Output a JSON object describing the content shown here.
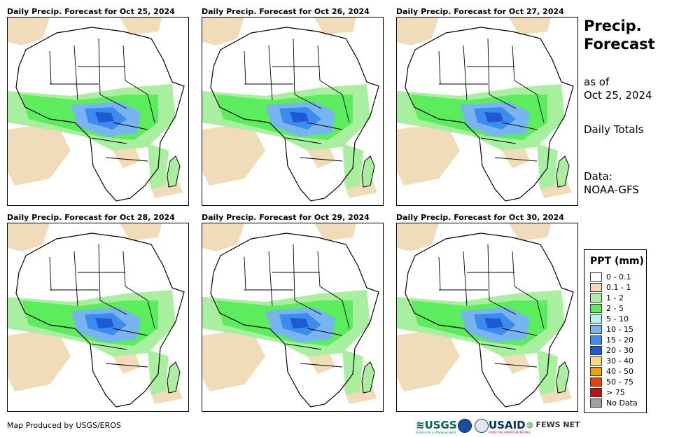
{
  "panels": [
    {
      "title": "Daily Precip. Forecast for Oct 25, 2024"
    },
    {
      "title": "Daily Precip. Forecast for Oct 26, 2024"
    },
    {
      "title": "Daily Precip. Forecast for Oct 27, 2024"
    },
    {
      "title": "Daily Precip. Forecast for Oct 28, 2024"
    },
    {
      "title": "Daily Precip. Forecast for Oct 29, 2024"
    },
    {
      "title": "Daily Precip. Forecast for Oct 30, 2024"
    }
  ],
  "sidebar": {
    "title_line1": "Precip.",
    "title_line2": "Forecast",
    "asof_line1": "as of",
    "asof_line2": "Oct 25, 2024",
    "totals": "Daily Totals",
    "data_line1": "Data:",
    "data_line2": "NOAA-GFS"
  },
  "legend": {
    "title": "PPT (mm)",
    "items": [
      {
        "label": "0 - 0.1",
        "color": "#ffffff"
      },
      {
        "label": "0.1 - 1",
        "color": "#f0dcb8"
      },
      {
        "label": "1 - 2",
        "color": "#a8f0a0"
      },
      {
        "label": "2 - 5",
        "color": "#5ced5c"
      },
      {
        "label": "5 - 10",
        "color": "#b4f0f0"
      },
      {
        "label": "10 - 15",
        "color": "#78b4f0"
      },
      {
        "label": "15 - 20",
        "color": "#3c8cf0"
      },
      {
        "label": "20 - 30",
        "color": "#1e5ad2"
      },
      {
        "label": "30 - 40",
        "color": "#fadc78"
      },
      {
        "label": "40 - 50",
        "color": "#f5a000"
      },
      {
        "label": "50 - 75",
        "color": "#f03c00"
      },
      {
        "label": "> 75",
        "color": "#b41414"
      },
      {
        "label": "No Data",
        "color": "#a0a0a0"
      }
    ]
  },
  "footer": {
    "credit": "Map Produced by USGS/EROS",
    "logos": {
      "usgs": "USGS",
      "usgs_tagline": "science for a changing world",
      "usaid": "USAID",
      "usaid_tagline": "FROM THE AMERICAN PEOPLE",
      "fews": "FEWS NET"
    }
  }
}
